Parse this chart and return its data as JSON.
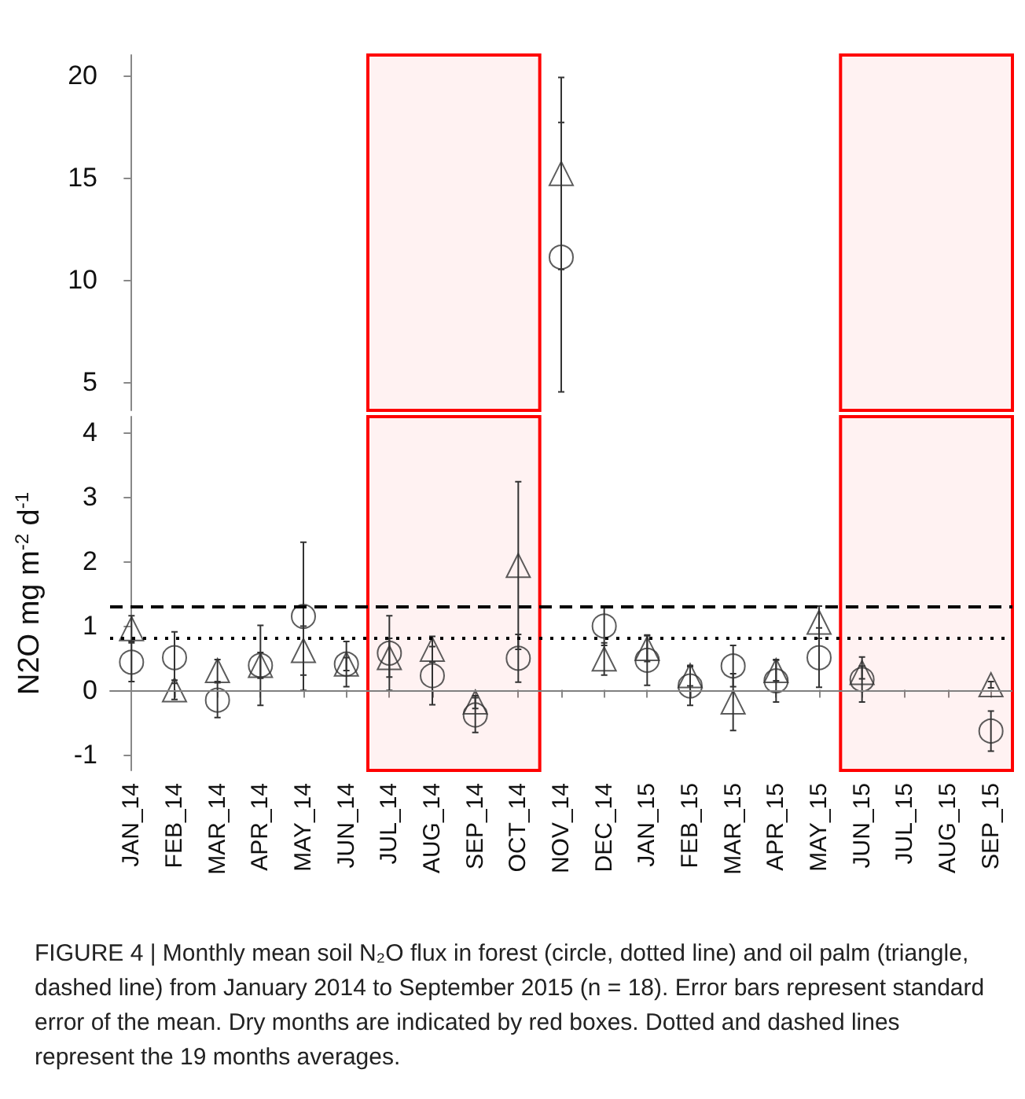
{
  "chart_data": [
    {
      "type": "scatter",
      "categories": [
        "JAN_14",
        "FEB_14",
        "MAR_14",
        "APR_14",
        "MAY_14",
        "JUN_14",
        "JUL_14",
        "AUG_14",
        "SEP_14",
        "OCT_14",
        "NOV_14",
        "DEC_14",
        "JAN_15",
        "FEB_15",
        "MAR_15",
        "APR_15",
        "MAY_15",
        "JUN_15",
        "JUL_15",
        "AUG_15",
        "SEP_15"
      ],
      "series": [
        {
          "color": "#333333",
          "marker": "circle",
          "values": [
            null,
            null,
            null,
            null,
            null,
            null,
            null,
            null,
            null,
            null,
            11.1,
            null,
            null,
            null,
            null,
            null,
            null,
            null,
            null,
            null,
            null
          ],
          "errors": [
            null,
            null,
            null,
            null,
            null,
            null,
            null,
            null,
            null,
            null,
            6.6,
            null,
            null,
            null,
            null,
            null,
            null,
            null,
            null,
            null,
            null
          ]
        },
        {
          "color": "#333333",
          "marker": "triangle",
          "values": [
            null,
            null,
            null,
            null,
            null,
            null,
            null,
            null,
            null,
            null,
            15.2,
            null,
            null,
            null,
            null,
            null,
            null,
            null,
            null,
            null,
            null
          ],
          "errors": [
            null,
            null,
            null,
            null,
            null,
            null,
            null,
            null,
            null,
            null,
            4.7,
            null,
            null,
            null,
            null,
            null,
            null,
            null,
            null,
            null,
            null
          ]
        }
      ],
      "ylim": [
        3.6,
        21
      ],
      "yticks": [
        5,
        10,
        15,
        20
      ],
      "tick_labels": "y",
      "bands": [
        {
          "axis": "x",
          "from": "JUL_14",
          "to": "OCT_14",
          "label": null,
          "color": "#ff0000"
        },
        {
          "axis": "x",
          "from": "JUN_15",
          "to": "SEP_15",
          "label": null,
          "color": "#ff0000"
        }
      ]
    },
    {
      "type": "scatter",
      "categories": [
        "JAN_14",
        "FEB_14",
        "MAR_14",
        "APR_14",
        "MAY_14",
        "JUN_14",
        "JUL_14",
        "AUG_14",
        "SEP_14",
        "OCT_14",
        "NOV_14",
        "DEC_14",
        "JAN_15",
        "FEB_15",
        "MAR_15",
        "APR_15",
        "MAY_15",
        "JUN_15",
        "JUL_15",
        "AUG_15",
        "SEP_15"
      ],
      "ylabel": "N2O mg m$^{-2}$ d$^{-1}$",
      "series": [
        {
          "color": "#333333",
          "marker": "circle",
          "values": [
            0.43,
            0.5,
            -0.16,
            0.38,
            1.14,
            0.4,
            0.57,
            0.22,
            -0.39,
            0.49,
            null,
            0.99,
            0.46,
            0.06,
            0.37,
            0.14,
            0.5,
            0.16,
            null,
            null,
            -0.64
          ],
          "errors": [
            0.3,
            0.4,
            0.27,
            0.62,
            1.15,
            0.35,
            0.58,
            0.45,
            0.27,
            0.37,
            null,
            0.3,
            0.39,
            0.3,
            0.32,
            0.33,
            0.46,
            0.35,
            null,
            null,
            0.31
          ]
        },
        {
          "color": "#333333",
          "marker": "triangle",
          "values": [
            0.95,
            0.0,
            0.3,
            0.38,
            0.61,
            0.4,
            0.5,
            0.63,
            -0.19,
            1.93,
            null,
            0.48,
            0.64,
            0.22,
            -0.19,
            0.3,
            1.05,
            0.27,
            null,
            null,
            0.08
          ],
          "errors": [
            0.2,
            0.15,
            0.17,
            0.2,
            0.38,
            0.1,
            0.3,
            0.2,
            0.1,
            1.3,
            null,
            0.25,
            0.2,
            0.16,
            0.44,
            0.16,
            0.25,
            0.1,
            null,
            null,
            0.05
          ]
        }
      ],
      "ylim": [
        -1.25,
        4.24
      ],
      "yticks": [
        -1,
        0,
        1,
        2,
        3,
        4
      ],
      "ref_lines": [
        {
          "axis": "y",
          "value": 1.3,
          "label": null,
          "color": "#000000",
          "line_style": "dashed"
        },
        {
          "axis": "y",
          "value": 0.8,
          "label": null,
          "color": "#000000",
          "line_style": "dotted"
        },
        {
          "axis": "y",
          "value": 0,
          "label": null,
          "color": "#808080",
          "line_style": "solid"
        }
      ],
      "bands": [
        {
          "axis": "x",
          "from": "JUL_14",
          "to": "OCT_14",
          "label": null,
          "color": "#ff0000"
        },
        {
          "axis": "x",
          "from": "JUN_15",
          "to": "SEP_15",
          "label": null,
          "color": "#ff0000"
        }
      ],
      "annotations": [
        "FIGURE 4 | Monthly mean soil N₂O flux in forest (circle, dotted line) and oil palm (triangle, dashed line) from January 2014 to September 2015 (n = 18). Error bars represent standard error of the mean. Dry months are indicated by red boxes. Dotted and dashed lines represent the 19 months averages."
      ]
    }
  ]
}
